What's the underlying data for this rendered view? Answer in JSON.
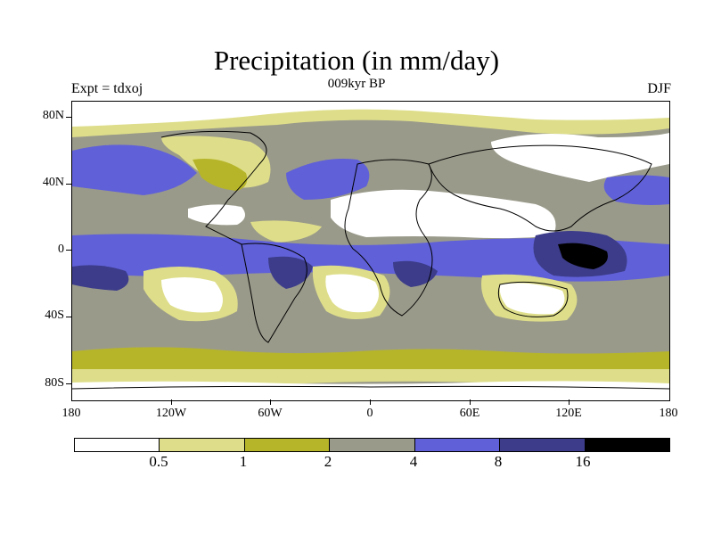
{
  "title": "Precipitation (in mm/day)",
  "subtitle": "009kyr BP",
  "left_label": "Expt = tdxoj",
  "right_label": "DJF",
  "lat_labels": [
    "80N",
    "40N",
    "0",
    "40S",
    "80S"
  ],
  "lon_labels": [
    "180",
    "120W",
    "60W",
    "0",
    "60E",
    "120E",
    "180"
  ],
  "colorbar": {
    "colors": [
      "#ffffff",
      "#dede8a",
      "#b6b52a",
      "#9a9a8b",
      "#6060d8",
      "#3c3c8a",
      "#000000"
    ],
    "labels": [
      "0.5",
      "1",
      "2",
      "4",
      "8",
      "16"
    ]
  },
  "colors": {
    "dry": "#ffffff",
    "very_light": "#dede8a",
    "light": "#b6b52a",
    "moderate": "#9a9a8b",
    "wet": "#6060d8",
    "very_wet": "#3c3c8a",
    "extreme": "#000000"
  }
}
